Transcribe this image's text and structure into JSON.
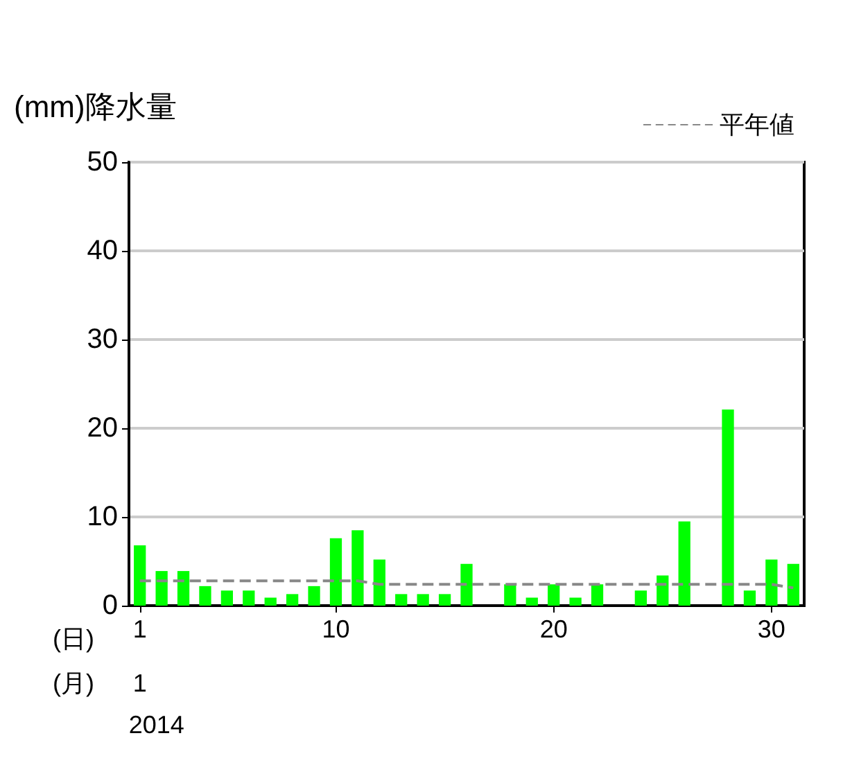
{
  "chart_data": {
    "type": "bar",
    "ylabel": "(mm)降水量",
    "xlabel": "(日)",
    "annotations": [
      "(月)",
      "1",
      "2014"
    ],
    "categories": [
      "1",
      null,
      null,
      null,
      null,
      null,
      null,
      null,
      null,
      "10",
      null,
      null,
      null,
      null,
      null,
      null,
      null,
      null,
      null,
      "20",
      null,
      null,
      null,
      null,
      null,
      null,
      null,
      null,
      null,
      "30",
      null
    ],
    "series": [
      {
        "color": "#00ff00",
        "values": [
          6.8,
          3.9,
          3.9,
          2.2,
          1.7,
          1.7,
          0.9,
          1.3,
          2.2,
          7.6,
          8.5,
          5.2,
          1.3,
          1.3,
          1.3,
          4.7,
          null,
          2.4,
          0.9,
          2.4,
          0.9,
          2.4,
          null,
          1.7,
          3.4,
          9.5,
          null,
          22.1,
          1.7,
          5.2,
          4.7
        ]
      },
      {
        "type": "line",
        "name": "平年値",
        "color": "#888888",
        "values": [
          2.8,
          2.8,
          2.8,
          2.8,
          2.8,
          2.8,
          2.8,
          2.8,
          2.8,
          2.8,
          2.8,
          2.4,
          2.4,
          2.4,
          2.4,
          2.4,
          2.4,
          2.4,
          2.4,
          2.4,
          2.4,
          2.4,
          2.4,
          2.4,
          2.4,
          2.4,
          2.4,
          2.4,
          2.4,
          2.4,
          2.0
        ]
      }
    ],
    "ylim": [
      0,
      50
    ],
    "yticks": [
      0,
      10,
      20,
      30,
      40,
      50
    ],
    "grid": "y",
    "legend": "top right",
    "marker": "none",
    "line_style": "dashed"
  }
}
